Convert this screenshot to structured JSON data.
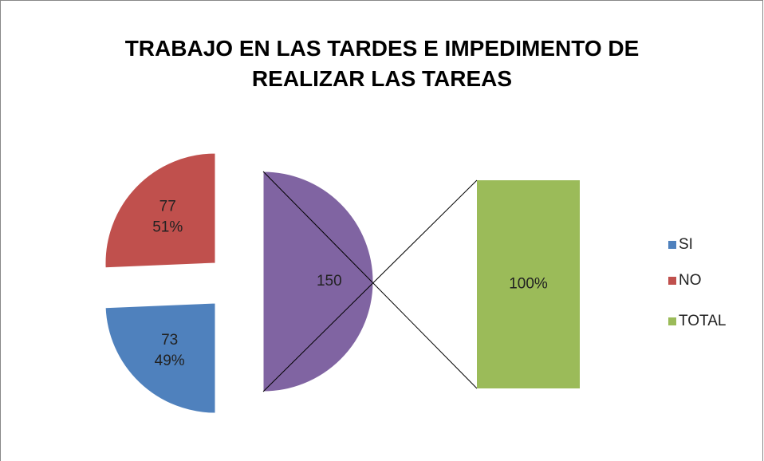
{
  "chart_data": {
    "type": "bar-of-pie",
    "title": "TRABAJO EN LAS TARDES E IMPEDIMENTO DE REALIZAR LAS TAREAS",
    "categories": [
      "SI",
      "NO",
      "TOTAL"
    ],
    "values": [
      73,
      77,
      150
    ],
    "percentages": [
      49,
      51,
      100
    ],
    "percentage_labels": [
      "49%",
      "51%",
      "100%"
    ],
    "colors": [
      "#4f81bd",
      "#c0504d",
      "#9bbb59"
    ],
    "split_color": "#8064a2",
    "legend": "right"
  }
}
